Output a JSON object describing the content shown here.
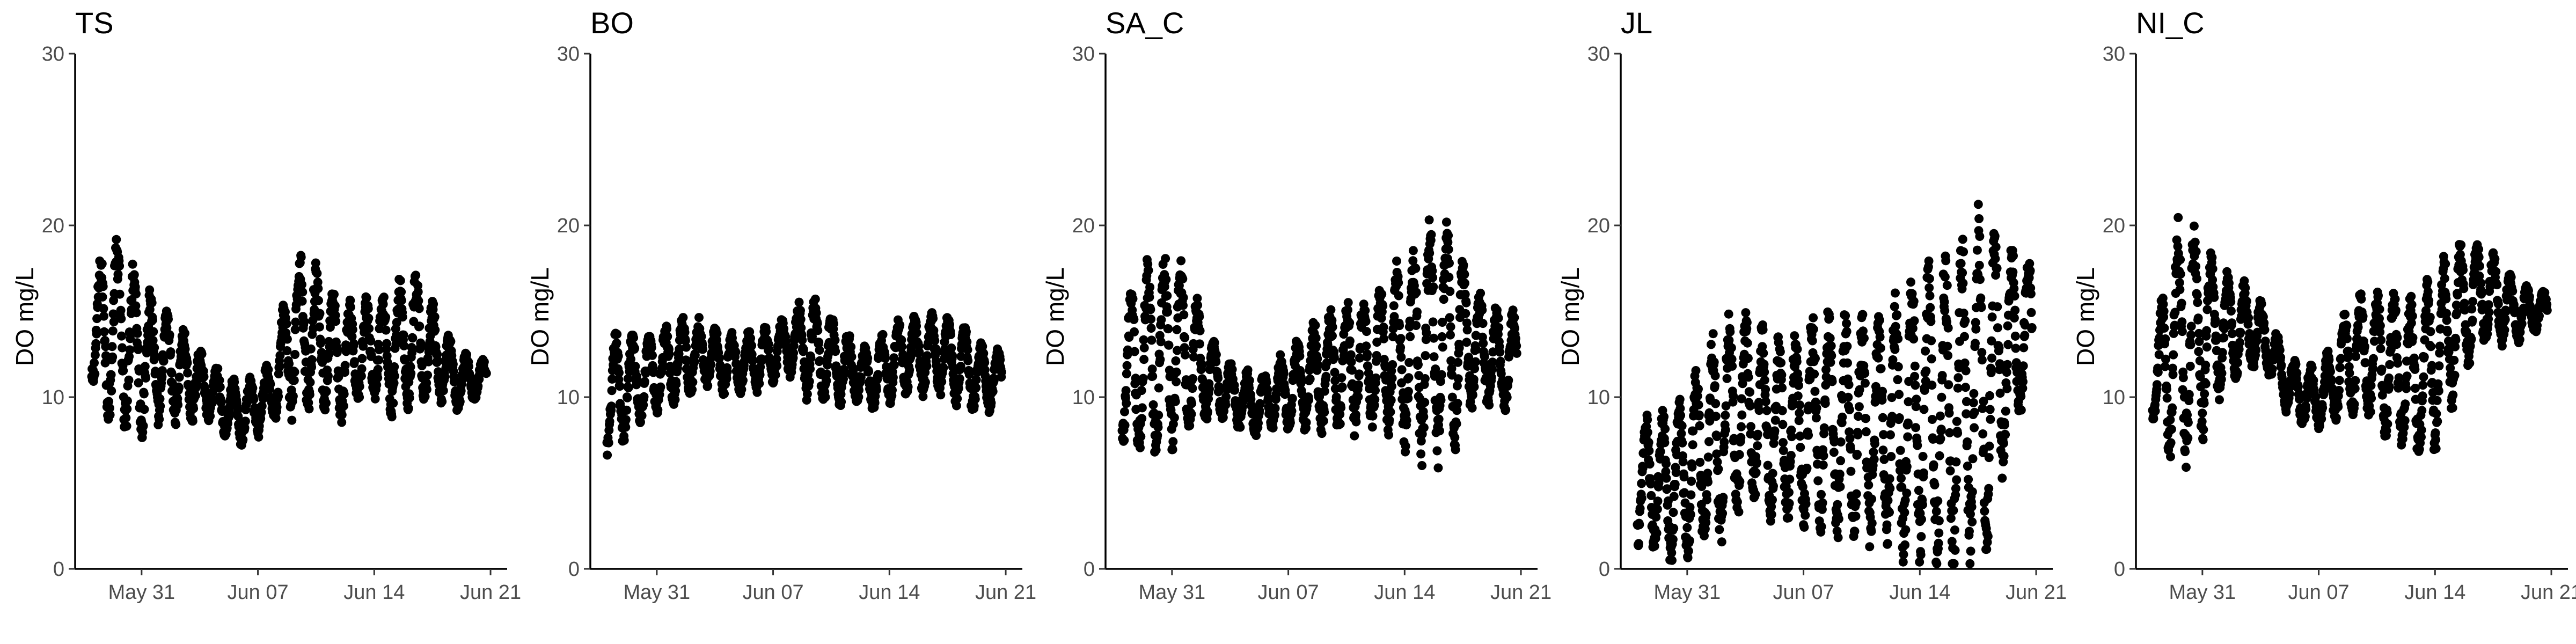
{
  "figure": {
    "point_color": "#000000",
    "background": "#ffffff"
  },
  "chart_data": [
    {
      "type": "scatter",
      "title": "TS",
      "ylabel": "DO mg/L",
      "ylim": [
        0,
        30
      ],
      "yticks": [
        0,
        10,
        20,
        30
      ],
      "x_range": [
        "2019-05-27",
        "2019-06-22"
      ],
      "xticks": [
        {
          "date": "2019-05-31",
          "label": "May 31"
        },
        {
          "date": "2019-06-07",
          "label": "Jun 07"
        },
        {
          "date": "2019-06-14",
          "label": "Jun 14"
        },
        {
          "date": "2019-06-21",
          "label": "Jun 21"
        }
      ],
      "x_start": "2019-05-28",
      "x_end": "2019-06-20",
      "mean": [
        13.5,
        14.0,
        13.5,
        12.5,
        12.0,
        11.5,
        11.0,
        10.5,
        9.5,
        9.0,
        9.5,
        10.5,
        13.5,
        14.0,
        13.0,
        12.0,
        12.5,
        13.0,
        12.5,
        13.5,
        13.0,
        12.0,
        11.0,
        11.0
      ],
      "amplitude": [
        2.5,
        4.5,
        4.5,
        4.0,
        3.0,
        2.5,
        2.0,
        1.5,
        1.5,
        1.5,
        1.5,
        1.5,
        4.0,
        4.0,
        3.0,
        3.0,
        2.5,
        2.5,
        3.0,
        3.5,
        3.0,
        2.0,
        1.5,
        1.0
      ]
    },
    {
      "type": "scatter",
      "title": "BO",
      "ylabel": "DO mg/L",
      "ylim": [
        0,
        30
      ],
      "yticks": [
        0,
        10,
        20,
        30
      ],
      "x_range": [
        "2019-05-27",
        "2019-06-22"
      ],
      "xticks": [
        {
          "date": "2019-05-31",
          "label": "May 31"
        },
        {
          "date": "2019-06-07",
          "label": "Jun 07"
        },
        {
          "date": "2019-06-14",
          "label": "Jun 14"
        },
        {
          "date": "2019-06-21",
          "label": "Jun 21"
        }
      ],
      "x_start": "2019-05-28",
      "x_end": "2019-06-20",
      "mean": [
        10.0,
        10.5,
        11.0,
        11.5,
        12.0,
        12.5,
        12.5,
        12.0,
        12.0,
        12.0,
        12.5,
        13.0,
        13.0,
        12.5,
        12.0,
        11.5,
        11.0,
        12.0,
        12.5,
        12.5,
        12.5,
        12.0,
        11.5,
        11.0
      ],
      "amplitude": [
        3.0,
        3.0,
        2.0,
        2.0,
        2.0,
        2.0,
        1.5,
        1.5,
        1.5,
        1.5,
        1.5,
        1.5,
        2.5,
        2.5,
        2.0,
        1.5,
        1.5,
        2.0,
        2.0,
        2.0,
        2.0,
        2.0,
        2.0,
        1.5
      ]
    },
    {
      "type": "scatter",
      "title": "SA_C",
      "ylabel": "DO mg/L",
      "ylim": [
        0,
        30
      ],
      "yticks": [
        0,
        10,
        20,
        30
      ],
      "x_range": [
        "2019-05-27",
        "2019-06-22"
      ],
      "xticks": [
        {
          "date": "2019-05-31",
          "label": "May 31"
        },
        {
          "date": "2019-06-07",
          "label": "Jun 07"
        },
        {
          "date": "2019-06-14",
          "label": "Jun 14"
        },
        {
          "date": "2019-06-21",
          "label": "Jun 21"
        }
      ],
      "x_start": "2019-05-28",
      "x_end": "2019-06-20",
      "mean": [
        11.0,
        12.0,
        12.5,
        13.0,
        12.5,
        11.5,
        10.5,
        10.0,
        9.5,
        10.0,
        10.5,
        11.0,
        11.5,
        11.5,
        12.0,
        12.0,
        12.5,
        12.5,
        13.0,
        13.5,
        13.5,
        13.0,
        12.5,
        12.0
      ],
      "amplitude": [
        3.5,
        4.5,
        5.0,
        5.0,
        4.0,
        2.5,
        1.5,
        1.5,
        1.5,
        1.5,
        2.0,
        2.5,
        3.0,
        3.0,
        3.5,
        3.5,
        4.0,
        4.5,
        5.5,
        6.0,
        5.5,
        3.0,
        2.5,
        2.5
      ]
    },
    {
      "type": "scatter",
      "title": "JL",
      "ylabel": "DO mg/L",
      "ylim": [
        0,
        30
      ],
      "yticks": [
        0,
        10,
        20,
        30
      ],
      "x_range": [
        "2019-05-27",
        "2019-06-22"
      ],
      "xticks": [
        {
          "date": "2019-05-31",
          "label": "May 31"
        },
        {
          "date": "2019-06-07",
          "label": "Jun 07"
        },
        {
          "date": "2019-06-14",
          "label": "Jun 14"
        },
        {
          "date": "2019-06-21",
          "label": "Jun 21"
        }
      ],
      "x_start": "2019-05-28",
      "x_end": "2019-06-20",
      "mean": [
        5.0,
        5.0,
        5.0,
        5.5,
        7.0,
        8.0,
        9.0,
        9.0,
        8.5,
        8.0,
        8.5,
        9.0,
        8.5,
        8.0,
        8.0,
        8.0,
        8.5,
        9.0,
        9.0,
        9.5,
        10.0,
        11.0,
        12.5,
        13.5
      ],
      "amplitude": [
        3.0,
        3.5,
        4.0,
        4.0,
        5.0,
        5.5,
        5.0,
        4.5,
        4.5,
        4.5,
        5.0,
        5.5,
        5.5,
        5.5,
        5.5,
        6.0,
        6.5,
        7.0,
        7.5,
        8.0,
        8.5,
        8.5,
        6.0,
        4.0
      ]
    },
    {
      "type": "scatter",
      "title": "NI_C",
      "ylabel": "DO mg/L",
      "ylim": [
        0,
        30
      ],
      "yticks": [
        0,
        10,
        20,
        30
      ],
      "x_range": [
        "2019-05-27",
        "2019-06-22"
      ],
      "xticks": [
        {
          "date": "2019-05-31",
          "label": "May 31"
        },
        {
          "date": "2019-06-07",
          "label": "Jun 07"
        },
        {
          "date": "2019-06-14",
          "label": "Jun 14"
        },
        {
          "date": "2019-06-21",
          "label": "Jun 21"
        }
      ],
      "x_start": "2019-05-28",
      "x_end": "2019-06-20",
      "mean": [
        10.0,
        13.0,
        13.5,
        13.5,
        14.0,
        14.0,
        14.0,
        13.0,
        11.0,
        10.0,
        10.0,
        11.0,
        12.5,
        12.5,
        12.0,
        11.5,
        11.0,
        12.0,
        14.0,
        15.5,
        16.0,
        15.5,
        15.0,
        15.0
      ],
      "amplitude": [
        1.0,
        5.5,
        6.0,
        5.0,
        3.5,
        2.5,
        2.0,
        1.5,
        1.5,
        1.5,
        1.5,
        2.0,
        3.0,
        3.0,
        3.5,
        3.5,
        4.0,
        4.5,
        4.0,
        3.0,
        2.5,
        2.0,
        1.5,
        1.0
      ]
    }
  ]
}
